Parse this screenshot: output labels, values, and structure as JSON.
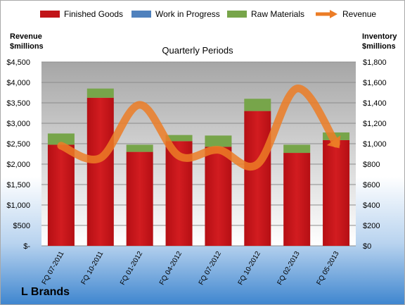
{
  "chart_data": {
    "type": "bar",
    "title": "Quarterly Periods",
    "brand": "L Brands",
    "ylabel_left_line1": "Revenue",
    "ylabel_left_line2": "$millions",
    "ylabel_right_line1": "Inventory",
    "ylabel_right_line2": "$millions",
    "categories": [
      "FQ 07-2011",
      "FQ 10-2011",
      "FQ 01-2012",
      "FQ 04-2012",
      "FQ 07-2012",
      "FQ 10-2012",
      "FQ 02-2013",
      "FQ 05-2013"
    ],
    "series": [
      {
        "name": "Finished Goods",
        "axis": "right",
        "kind": "bar",
        "color": "#c11418",
        "values": [
          990,
          1450,
          920,
          1025,
          970,
          1320,
          910,
          1035
        ]
      },
      {
        "name": "Work in Progress",
        "axis": "right",
        "kind": "bar",
        "color": "#4f81bd",
        "values": [
          0,
          0,
          0,
          0,
          0,
          0,
          0,
          0
        ]
      },
      {
        "name": "Raw Materials",
        "axis": "right",
        "kind": "bar",
        "color": "#77a54a",
        "values": [
          110,
          90,
          70,
          60,
          110,
          120,
          80,
          75
        ]
      },
      {
        "name": "Revenue",
        "axis": "left",
        "kind": "line",
        "color": "#ec7c26",
        "values": [
          2450,
          2150,
          3450,
          2200,
          2350,
          2000,
          3850,
          2500
        ]
      }
    ],
    "ylim_left": [
      0,
      4500
    ],
    "ylim_right": [
      0,
      1800
    ],
    "left_ticks": [
      "$-",
      "$500",
      "$1,000",
      "$1,500",
      "$2,000",
      "$2,500",
      "$3,000",
      "$3,500",
      "$4,000",
      "$4,500"
    ],
    "right_ticks": [
      "$0",
      "$200",
      "$400",
      "$600",
      "$800",
      "$1,000",
      "$1,200",
      "$1,400",
      "$1,600",
      "$1,800"
    ],
    "grid": true,
    "legend_position": "top",
    "plot_background": "gradient gray"
  }
}
